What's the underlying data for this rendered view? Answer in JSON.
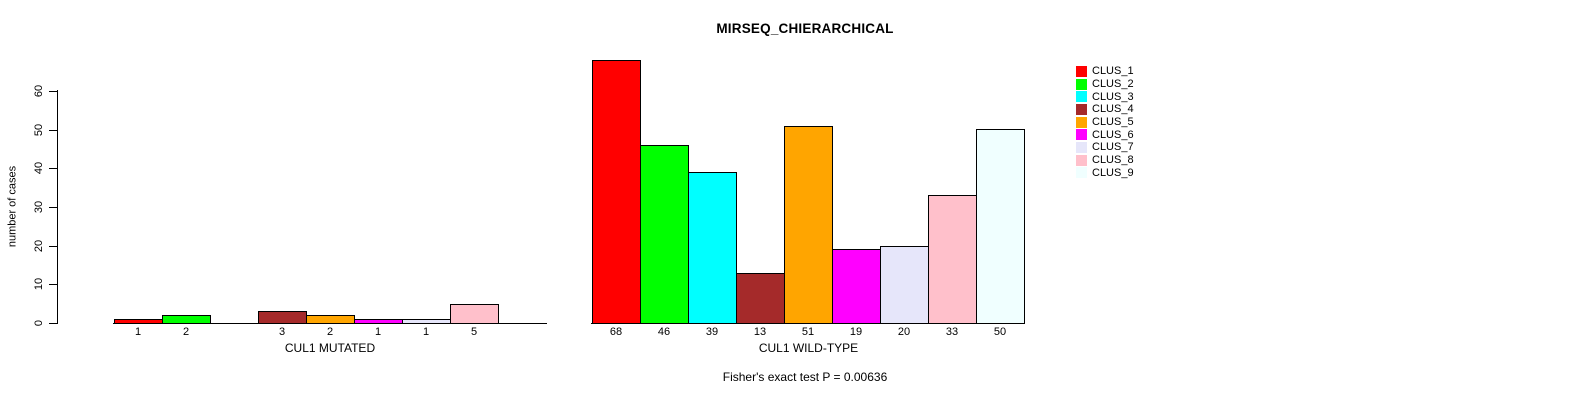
{
  "title": "MIRSEQ_CHIERARCHICAL",
  "annotation": "Fisher's exact test P = 0.00636",
  "legend": {
    "position": "right",
    "items": [
      {
        "label": "CLUS_1",
        "color": "#FF0000"
      },
      {
        "label": "CLUS_2",
        "color": "#00FF00"
      },
      {
        "label": "CLUS_3",
        "color": "#00FFFF"
      },
      {
        "label": "CLUS_4",
        "color": "#A52A2A"
      },
      {
        "label": "CLUS_5",
        "color": "#FFA500"
      },
      {
        "label": "CLUS_6",
        "color": "#FF00FF"
      },
      {
        "label": "CLUS_7",
        "color": "#E6E6FA"
      },
      {
        "label": "CLUS_8",
        "color": "#FFC0CB"
      },
      {
        "label": "CLUS_9",
        "color": "#F0FFFF"
      }
    ]
  },
  "chart_data": [
    {
      "type": "bar",
      "title": "MIRSEQ_CHIERARCHICAL",
      "xlabel": "CUL1 MUTATED",
      "ylabel": "number of cases",
      "categories": [
        "CLUS_1",
        "CLUS_2",
        "CLUS_3",
        "CLUS_4",
        "CLUS_5",
        "CLUS_6",
        "CLUS_7",
        "CLUS_8",
        "CLUS_9"
      ],
      "values": [
        1,
        2,
        0,
        3,
        2,
        1,
        1,
        5,
        0
      ],
      "bar_labels": [
        "1",
        "2",
        "",
        "3",
        "2",
        "1",
        "1",
        "5",
        ""
      ],
      "colors": [
        "#FF0000",
        "#00FF00",
        "#00FFFF",
        "#A52A2A",
        "#FFA500",
        "#FF00FF",
        "#E6E6FA",
        "#FFC0CB",
        "#F0FFFF"
      ],
      "ylim": [
        0,
        60
      ],
      "yticks": [
        0,
        10,
        20,
        30,
        40,
        50,
        60
      ],
      "y_axis": true,
      "grid": false,
      "legend_position": "right"
    },
    {
      "type": "bar",
      "title": "",
      "xlabel": "CUL1 WILD-TYPE",
      "ylabel": "",
      "categories": [
        "CLUS_1",
        "CLUS_2",
        "CLUS_3",
        "CLUS_4",
        "CLUS_5",
        "CLUS_6",
        "CLUS_7",
        "CLUS_8",
        "CLUS_9"
      ],
      "values": [
        68,
        46,
        39,
        13,
        51,
        19,
        20,
        33,
        50
      ],
      "bar_labels": [
        "68",
        "46",
        "39",
        "13",
        "51",
        "19",
        "20",
        "33",
        "50"
      ],
      "colors": [
        "#FF0000",
        "#00FF00",
        "#00FFFF",
        "#A52A2A",
        "#FFA500",
        "#FF00FF",
        "#E6E6FA",
        "#FFC0CB",
        "#F0FFFF"
      ],
      "ylim": [
        0,
        60
      ],
      "yticks": [],
      "y_axis": false,
      "grid": false
    }
  ]
}
